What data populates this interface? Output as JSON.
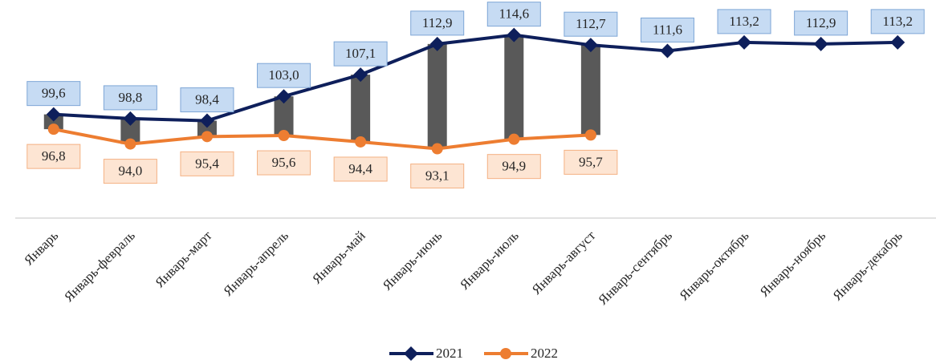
{
  "chart_data": {
    "type": "line",
    "categories": [
      "Январь",
      "Январь-февраль",
      "Январь-март",
      "Январь-апрель",
      "Январь-май",
      "Январь-июнь",
      "Январь-июль",
      "Январь-август",
      "Январь-сентябрь",
      "Январь-октябрь",
      "Январь-ноябрь",
      "Январь-декабрь"
    ],
    "series": [
      {
        "name": "2021",
        "color": "#0e1f5b",
        "marker": "diamond",
        "values": [
          99.6,
          98.8,
          98.4,
          103.0,
          107.1,
          112.9,
          114.6,
          112.7,
          111.6,
          113.2,
          112.9,
          113.2
        ],
        "value_labels": [
          "99,6",
          "98,8",
          "98,4",
          "103,0",
          "107,1",
          "112,9",
          "114,6",
          "112,7",
          "111,6",
          "113,2",
          "112,9",
          "113,2"
        ]
      },
      {
        "name": "2022",
        "color": "#ed7d31",
        "marker": "circle",
        "values": [
          96.8,
          94.0,
          95.4,
          95.6,
          94.4,
          93.1,
          94.9,
          95.7,
          null,
          null,
          null,
          null
        ],
        "value_labels": [
          "96,8",
          "94,0",
          "95,4",
          "95,6",
          "94,4",
          "93,1",
          "94,9",
          "95,7",
          null,
          null,
          null,
          null
        ]
      }
    ],
    "ylim": [
      80,
      120
    ],
    "legend": "bottom",
    "updown_bars_color": "#595959"
  }
}
